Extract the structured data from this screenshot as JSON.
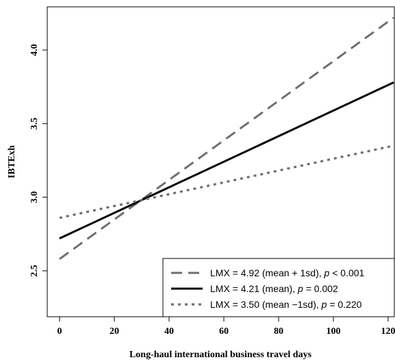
{
  "chart_data": {
    "type": "line",
    "title": "",
    "xlabel": "Long-haul international business travel days",
    "ylabel": "IBTExh",
    "xlim": [
      0,
      120
    ],
    "ylim": [
      2.2,
      4.3
    ],
    "x_ticks": [
      0,
      20,
      40,
      60,
      80,
      100,
      120
    ],
    "y_ticks": [
      2.5,
      3.0,
      3.5,
      4.0
    ],
    "x_tick_labels": [
      "0",
      "20",
      "40",
      "60",
      "80",
      "100",
      "120"
    ],
    "y_tick_labels": [
      "2.5",
      "3.0",
      "3.5",
      "4.0"
    ],
    "grid": false,
    "legend_position": "bottom-right",
    "series": [
      {
        "name": "LMX = 4.92 (mean + 1sd), p < 0.001",
        "legend_parts": [
          "LMX = 4.92 (mean + 1sd), ",
          "p",
          " < 0.001"
        ],
        "style": "dashed",
        "color": "#6e6e6e",
        "x": [
          0,
          122
        ],
        "y": [
          2.58,
          4.22
        ]
      },
      {
        "name": "LMX = 4.21 (mean), p = 0.002",
        "legend_parts": [
          "LMX = 4.21 (mean), ",
          "p",
          " = 0.002"
        ],
        "style": "solid",
        "color": "#000000",
        "x": [
          0,
          122
        ],
        "y": [
          2.72,
          3.78
        ]
      },
      {
        "name": "LMX = 3.50 (mean −1sd), p = 0.220",
        "legend_parts": [
          "LMX = 3.50 (mean −1sd), ",
          "p",
          " = 0.220"
        ],
        "style": "dotted",
        "color": "#6e6e6e",
        "x": [
          0,
          122
        ],
        "y": [
          2.86,
          3.35
        ]
      }
    ]
  }
}
